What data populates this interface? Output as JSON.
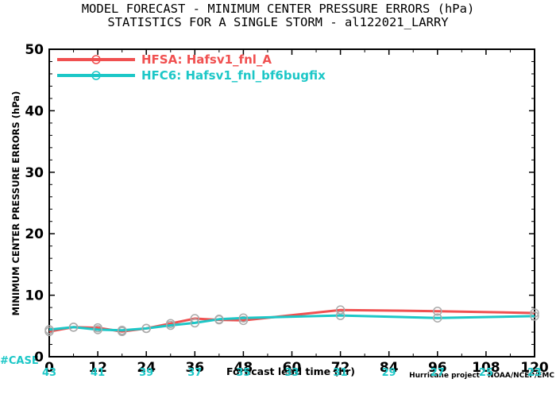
{
  "chart_data": {
    "type": "line",
    "title_line1": "MODEL FORECAST - MINIMUM CENTER PRESSURE ERRORS (hPa)",
    "title_line2": "STATISTICS FOR A SINGLE STORM - al122021_LARRY",
    "ylabel": "MINIMUM CENTER PRESSURE ERRORS (hPa)",
    "xlabel": "Forecast lead time (hr)",
    "credit": "Hurricane project - NOAA/NCEP/EMC",
    "case_label": "#CASE",
    "xlim": [
      0,
      120
    ],
    "ylim": [
      0,
      50
    ],
    "x_ticks": [
      0,
      12,
      24,
      36,
      48,
      60,
      72,
      84,
      96,
      108,
      120
    ],
    "x_tick_labels": [
      "0",
      "12",
      "24",
      "36",
      "48",
      "60",
      "72",
      "84",
      "96",
      "108",
      "120"
    ],
    "y_ticks": [
      0,
      10,
      20,
      30,
      40,
      50
    ],
    "y_tick_labels": [
      "0",
      "10",
      "20",
      "30",
      "40",
      "50"
    ],
    "case_counts": [
      "43",
      "41",
      "39",
      "37",
      "35",
      "33",
      "31",
      "29",
      "27",
      "25",
      "23"
    ],
    "grid": false,
    "legend_position": "top-left",
    "series": [
      {
        "name": "HFSA: Hafsv1_fnl_A",
        "color": "#f05050",
        "x": [
          0,
          6,
          12,
          18,
          24,
          30,
          36,
          42,
          48,
          72,
          96,
          120
        ],
        "y": [
          4.1,
          4.8,
          4.7,
          4.1,
          4.6,
          5.4,
          6.2,
          6.0,
          5.9,
          7.6,
          7.4,
          7.1
        ]
      },
      {
        "name": "HFC6: Hafsv1_fnl_bf6bugfix",
        "color": "#1cc7c7",
        "x": [
          0,
          6,
          12,
          18,
          24,
          30,
          36,
          42,
          48,
          72,
          96,
          120
        ],
        "y": [
          4.4,
          4.8,
          4.4,
          4.3,
          4.6,
          5.1,
          5.5,
          6.1,
          6.3,
          6.7,
          6.3,
          6.6
        ]
      }
    ]
  }
}
